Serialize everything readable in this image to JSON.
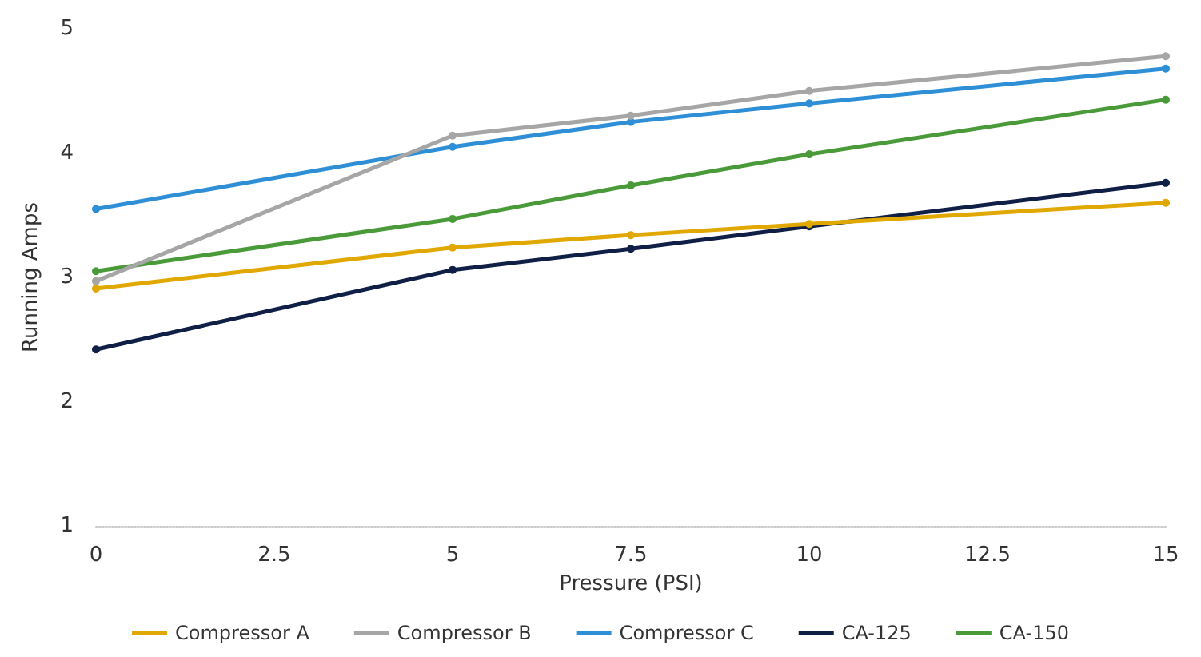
{
  "chart_data": {
    "type": "line",
    "xlabel": "Pressure (PSI)",
    "ylabel": "Running Amps",
    "x": [
      0,
      5,
      7.5,
      10,
      15
    ],
    "series": [
      {
        "name": "Compressor A",
        "color": "#e0a800",
        "values": [
          2.91,
          3.24,
          3.34,
          3.43,
          3.6
        ]
      },
      {
        "name": "Compressor B",
        "color": "#a6a6a6",
        "values": [
          2.97,
          4.14,
          4.3,
          4.5,
          4.78
        ]
      },
      {
        "name": "Compressor C",
        "color": "#2e8fd6",
        "values": [
          3.55,
          4.05,
          4.25,
          4.4,
          4.68
        ]
      },
      {
        "name": "CA-125",
        "color": "#0f1f45",
        "values": [
          2.42,
          3.06,
          3.23,
          3.41,
          3.76
        ]
      },
      {
        "name": "CA-150",
        "color": "#4a9a3a",
        "values": [
          3.05,
          3.47,
          3.74,
          3.99,
          4.43
        ]
      }
    ],
    "xlim": [
      0,
      15
    ],
    "xticks": [
      0,
      2.5,
      5,
      7.5,
      10,
      12.5,
      15
    ],
    "ylim": [
      1,
      5
    ],
    "yticks": [
      1,
      2,
      3,
      4,
      5
    ],
    "grid": false,
    "legend": "bottom",
    "marker": "circle",
    "line_style": "solid"
  }
}
